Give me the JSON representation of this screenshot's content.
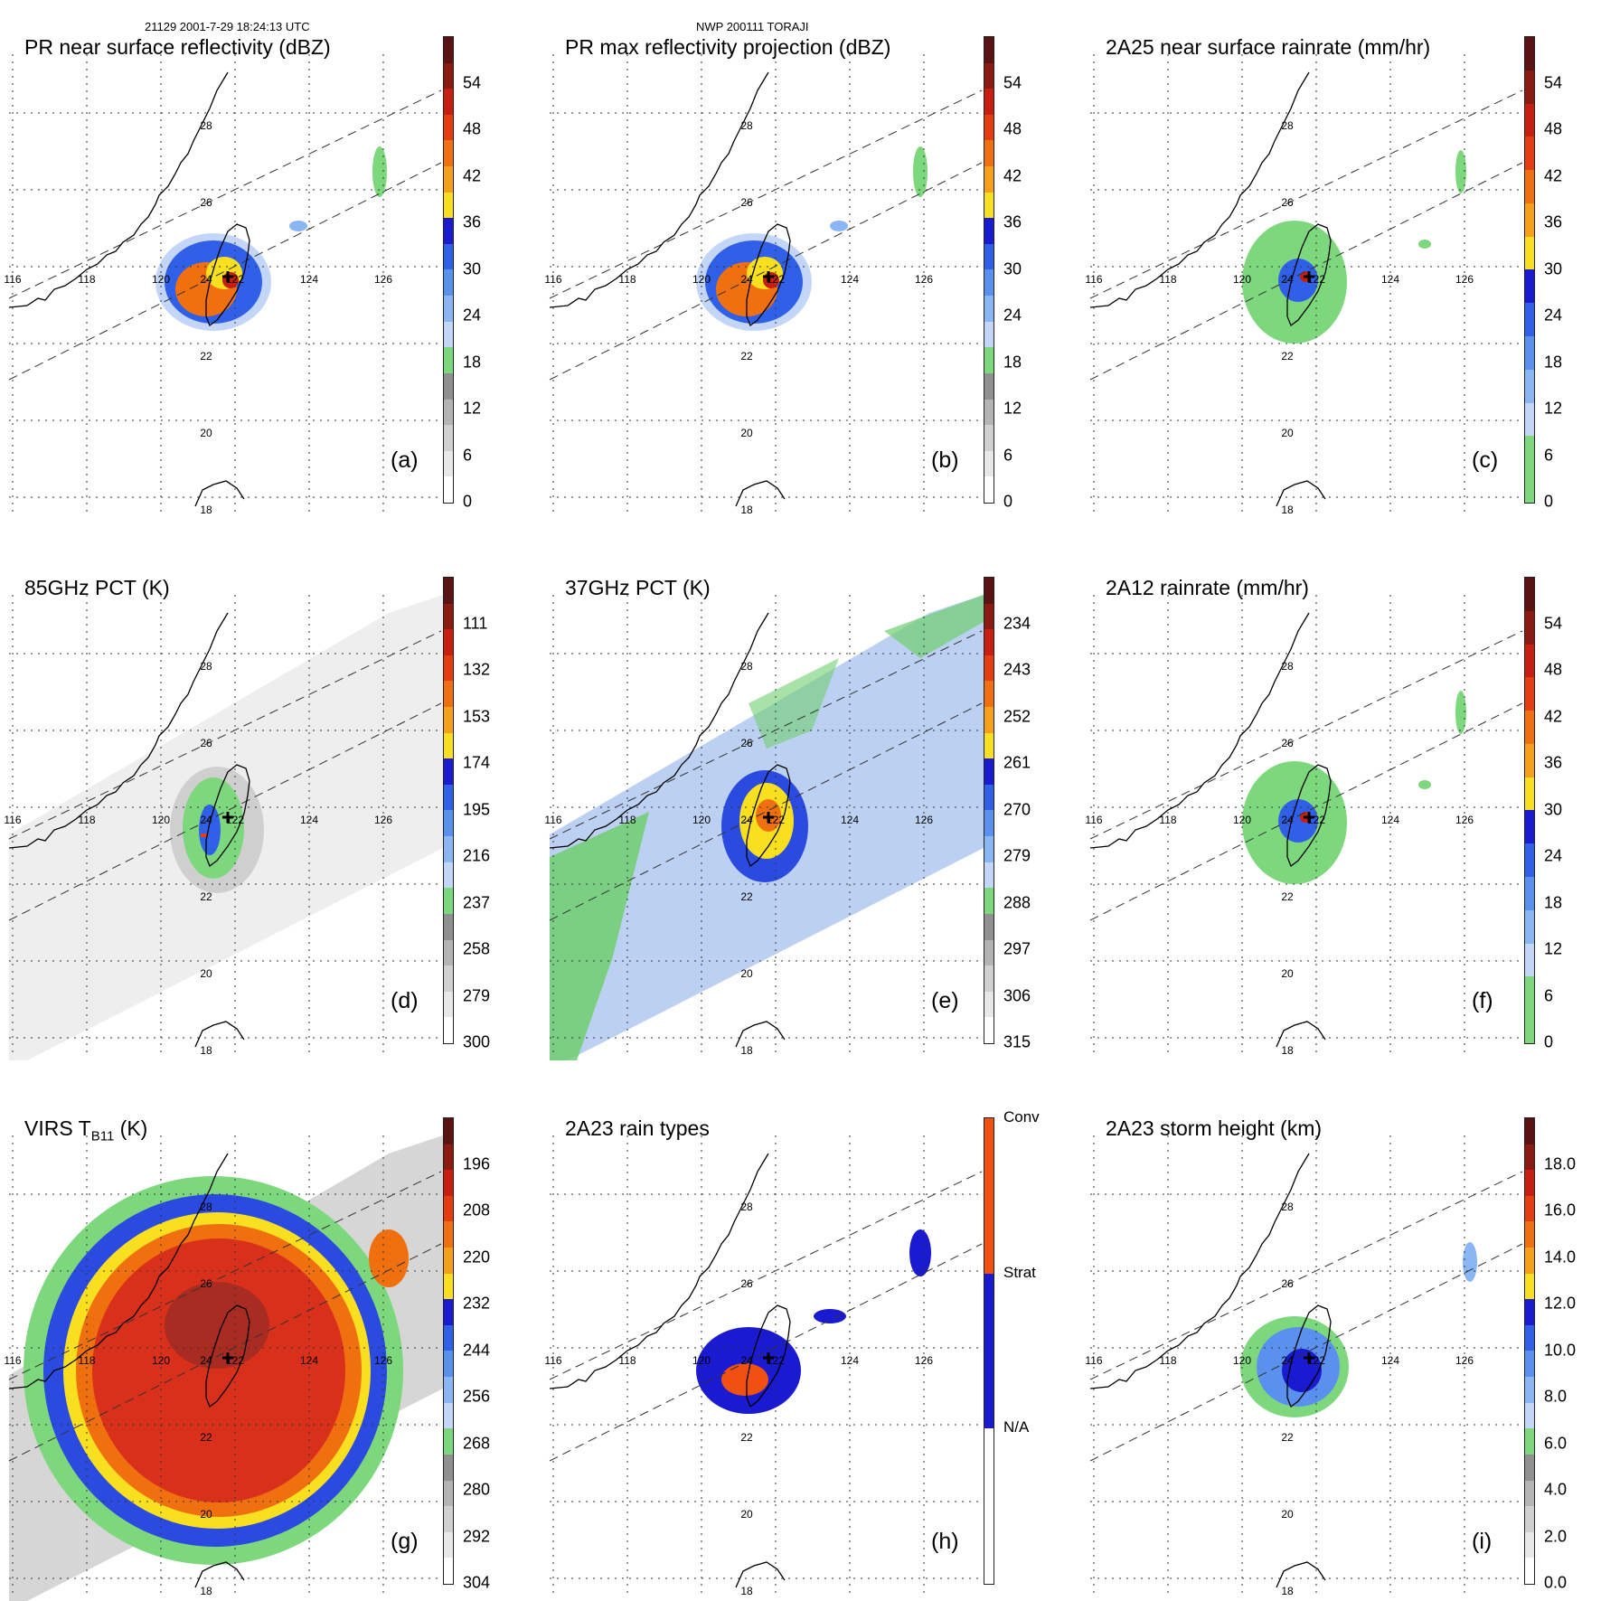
{
  "header": {
    "left": "21129 2001-7-29 18:24:13 UTC",
    "center": "NWP 200111 TORAJI"
  },
  "map": {
    "lon_labels": [
      "116",
      "118",
      "120",
      "122",
      "124",
      "126"
    ],
    "lat_labels": [
      "18",
      "20",
      "22",
      "24",
      "26",
      "28"
    ]
  },
  "colorbars": {
    "dbz": {
      "ticks": [
        "54",
        "48",
        "42",
        "36",
        "30",
        "24",
        "18",
        "12",
        "6",
        "0"
      ],
      "colors": [
        "#5a1212",
        "#8a1a12",
        "#c81e12",
        "#e63c12",
        "#f07010",
        "#f5a018",
        "#f8e020",
        "#1a1ad0",
        "#3060e8",
        "#5a90ee",
        "#8ab6f4",
        "#c4d6f8",
        "#7dd87d",
        "#909090",
        "#b4b4b4",
        "#d0d0d0",
        "#e8e8e8",
        "#ffffff"
      ]
    },
    "rain": {
      "ticks": [
        "54",
        "48",
        "42",
        "36",
        "30",
        "24",
        "18",
        "12",
        "6",
        "0"
      ],
      "colors": [
        "#5a1212",
        "#8a1a12",
        "#c81e12",
        "#e63c12",
        "#f07010",
        "#f5a018",
        "#f8e020",
        "#1a1ad0",
        "#3060e8",
        "#5a90ee",
        "#8ab6f4",
        "#c4d6f8",
        "#7dd87d",
        "#7dd87d"
      ]
    },
    "pct85": {
      "ticks": [
        "111",
        "132",
        "153",
        "174",
        "195",
        "216",
        "237",
        "258",
        "279",
        "300"
      ],
      "colors": [
        "#5a1212",
        "#8a1a12",
        "#c81e12",
        "#e63c12",
        "#f07010",
        "#f5a018",
        "#f8e020",
        "#1a1ad0",
        "#3060e8",
        "#5a90ee",
        "#8ab6f4",
        "#c4d6f8",
        "#7dd87d",
        "#909090",
        "#b4b4b4",
        "#d0d0d0",
        "#e8e8e8",
        "#ffffff"
      ]
    },
    "pct37": {
      "ticks": [
        "234",
        "243",
        "252",
        "261",
        "270",
        "279",
        "288",
        "297",
        "306",
        "315"
      ],
      "colors": [
        "#5a1212",
        "#8a1a12",
        "#c81e12",
        "#e63c12",
        "#f07010",
        "#f5a018",
        "#f8e020",
        "#1a1ad0",
        "#3060e8",
        "#5a90ee",
        "#8ab6f4",
        "#c4d6f8",
        "#7dd87d",
        "#909090",
        "#b4b4b4",
        "#d0d0d0",
        "#e8e8e8",
        "#ffffff"
      ]
    },
    "virs": {
      "ticks": [
        "196",
        "208",
        "220",
        "232",
        "244",
        "256",
        "268",
        "280",
        "292",
        "304"
      ],
      "colors": [
        "#5a1212",
        "#8a1a12",
        "#c81e12",
        "#e63c12",
        "#f07010",
        "#f5a018",
        "#f8e020",
        "#1a1ad0",
        "#3060e8",
        "#5a90ee",
        "#8ab6f4",
        "#c4d6f8",
        "#7dd87d",
        "#909090",
        "#b4b4b4",
        "#d0d0d0",
        "#e8e8e8",
        "#ffffff"
      ]
    },
    "types": {
      "ticks": [
        "Conv",
        "Strat",
        "N/A"
      ],
      "colors": [
        "#f05010",
        "#f05010",
        "#1a1ad0",
        "#1a1ad0",
        "#ffffff",
        "#ffffff"
      ]
    },
    "height": {
      "ticks": [
        "18.0",
        "16.0",
        "14.0",
        "12.0",
        "10.0",
        "8.0",
        "6.0",
        "4.0",
        "2.0",
        "0.0"
      ],
      "colors": [
        "#5a1212",
        "#8a1a12",
        "#c81e12",
        "#e63c12",
        "#f07010",
        "#f5a018",
        "#f8e020",
        "#1a1ad0",
        "#3060e8",
        "#5a90ee",
        "#8ab6f4",
        "#c4d6f8",
        "#7dd87d",
        "#909090",
        "#b4b4b4",
        "#d0d0d0",
        "#e8e8e8",
        "#ffffff"
      ]
    }
  },
  "panels": [
    {
      "id": "a",
      "title": "PR near surface reflectivity (dBZ)",
      "label": "(a)",
      "colorbar": "dbz",
      "style": "pr"
    },
    {
      "id": "b",
      "title": "PR max reflectivity projection (dBZ)",
      "label": "(b)",
      "colorbar": "dbz",
      "style": "pr"
    },
    {
      "id": "c",
      "title": "2A25 near surface rainrate (mm/hr)",
      "label": "(c)",
      "colorbar": "rain",
      "style": "rain"
    },
    {
      "id": "d",
      "title": "85GHz PCT (K)",
      "label": "(d)",
      "colorbar": "pct85",
      "style": "pct85"
    },
    {
      "id": "e",
      "title": "37GHz PCT (K)",
      "label": "(e)",
      "colorbar": "pct37",
      "style": "pct37"
    },
    {
      "id": "f",
      "title": "2A12 rainrate (mm/hr)",
      "label": "(f)",
      "colorbar": "rain",
      "style": "rain"
    },
    {
      "id": "g",
      "title": "VIRS T",
      "title_sub": "B11",
      "title_suffix": " (K)",
      "label": "(g)",
      "colorbar": "virs",
      "style": "virs"
    },
    {
      "id": "h",
      "title": "2A23 rain types",
      "label": "(h)",
      "colorbar": "types",
      "style": "types"
    },
    {
      "id": "i",
      "title": "2A23 storm height (km)",
      "label": "(i)",
      "colorbar": "height",
      "style": "height"
    }
  ]
}
